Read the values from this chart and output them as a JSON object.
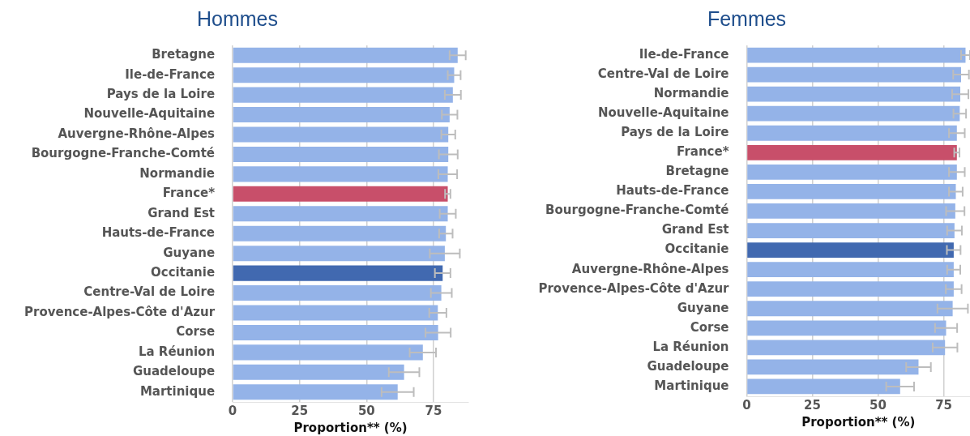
{
  "chart_data": [
    {
      "type": "bar",
      "orientation": "horizontal",
      "title": "Hommes",
      "xlabel": "Proportion** (%)",
      "categories": [
        "Bretagne",
        "Ile-de-France",
        "Pays de la Loire",
        "Nouvelle-Aquitaine",
        "Auvergne-Rhône-Alpes",
        "Bourgogne-Franche-Comté",
        "Normandie",
        "France*",
        "Grand Est",
        "Hauts-de-France",
        "Guyane",
        "Occitanie",
        "Centre-Val de Loire",
        "Provence-Alpes-Côte d'Azur",
        "Corse",
        "La Réunion",
        "Guadeloupe",
        "Martinique"
      ],
      "values": [
        84.0,
        82.7,
        82.2,
        81.0,
        80.5,
        80.5,
        80.3,
        80.3,
        80.3,
        79.6,
        79.2,
        78.4,
        77.9,
        76.6,
        76.7,
        71.0,
        64.0,
        61.6
      ],
      "errors": [
        3.0,
        2.4,
        3.0,
        2.9,
        2.6,
        3.5,
        3.5,
        1.0,
        3.0,
        2.5,
        5.6,
        2.9,
        3.9,
        3.2,
        4.7,
        4.9,
        5.7,
        6.0
      ],
      "colors": [
        "#94b3e8",
        "#94b3e8",
        "#94b3e8",
        "#94b3e8",
        "#94b3e8",
        "#94b3e8",
        "#94b3e8",
        "#c84f6a",
        "#94b3e8",
        "#94b3e8",
        "#94b3e8",
        "#4169b0",
        "#94b3e8",
        "#94b3e8",
        "#94b3e8",
        "#94b3e8",
        "#94b3e8",
        "#94b3e8"
      ],
      "xlim": [
        0,
        88
      ],
      "xticks": [
        0,
        25,
        50,
        75
      ],
      "grid": "x"
    },
    {
      "type": "bar",
      "orientation": "horizontal",
      "title": "Femmes",
      "xlabel": "Proportion** (%)",
      "categories": [
        "Ile-de-France",
        "Centre-Val de Loire",
        "Normandie",
        "Nouvelle-Aquitaine",
        "Pays de la Loire",
        "France*",
        "Bretagne",
        "Hauts-de-France",
        "Bourgogne-Franche-Comté",
        "Grand Est",
        "Occitanie",
        "Auvergne-Rhône-Alpes",
        "Provence-Alpes-Côte d'Azur",
        "Guyane",
        "Corse",
        "La Réunion",
        "Guadeloupe",
        "Martinique"
      ],
      "values": [
        83.3,
        81.6,
        81.3,
        81.1,
        80.0,
        80.0,
        80.0,
        79.6,
        79.4,
        79.1,
        78.8,
        78.8,
        78.8,
        78.4,
        75.9,
        75.5,
        65.4,
        58.4
      ],
      "errors": [
        1.7,
        3.0,
        3.1,
        2.4,
        3.0,
        1.0,
        3.0,
        2.6,
        3.5,
        2.8,
        2.6,
        2.5,
        3.0,
        5.8,
        4.2,
        4.7,
        4.7,
        5.3
      ],
      "colors": [
        "#94b3e8",
        "#94b3e8",
        "#94b3e8",
        "#94b3e8",
        "#94b3e8",
        "#c84f6a",
        "#94b3e8",
        "#94b3e8",
        "#94b3e8",
        "#94b3e8",
        "#4169b0",
        "#94b3e8",
        "#94b3e8",
        "#94b3e8",
        "#94b3e8",
        "#94b3e8",
        "#94b3e8",
        "#94b3e8"
      ],
      "xlim": [
        0,
        85
      ],
      "xticks": [
        0,
        25,
        50,
        75
      ],
      "grid": "x"
    }
  ]
}
